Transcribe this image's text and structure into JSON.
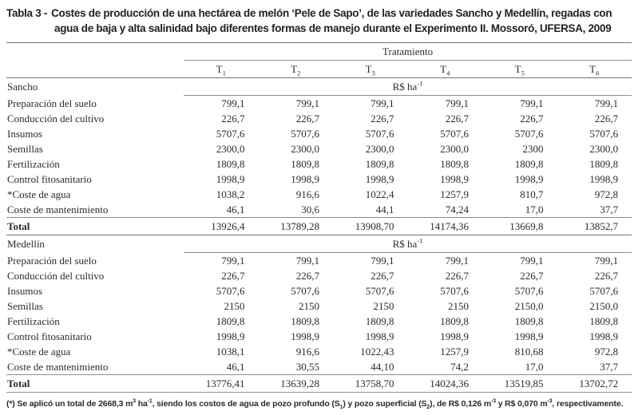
{
  "title": {
    "label": "Tabla 3 -",
    "text": "Costes de producción de una hectárea de melón ‘Pele de Sapo’, de las variedades Sancho y Medellín, regadas con agua de baja y alta salinidad bajo diferentes formas de manejo durante el Experimento II. Mossoró, UFERSA, 2009"
  },
  "table": {
    "group_header": "Tratamiento",
    "columns": [
      {
        "t": "T",
        "sub": "1"
      },
      {
        "t": "T",
        "sub": "2"
      },
      {
        "t": "T",
        "sub": "3"
      },
      {
        "t": "T",
        "sub": "4"
      },
      {
        "t": "T",
        "sub": "5"
      },
      {
        "t": "T",
        "sub": "6"
      }
    ],
    "unit_segments": [
      {
        "t": "R$ ha"
      },
      {
        "sup": "-1"
      }
    ],
    "total_label": "Total",
    "sections": [
      {
        "name": "Sancho",
        "rows": [
          {
            "label": "Preparación del suelo",
            "values": [
              "799,1",
              "799,1",
              "799,1",
              "799,1",
              "799,1",
              "799,1"
            ]
          },
          {
            "label": "Conducción del cultivo",
            "values": [
              "226,7",
              "226,7",
              "226,7",
              "226,7",
              "226,7",
              "226,7"
            ]
          },
          {
            "label": "Insumos",
            "values": [
              "5707,6",
              "5707,6",
              "5707,6",
              "5707,6",
              "5707,6",
              "5707,6"
            ]
          },
          {
            "label": "Semillas",
            "values": [
              "2300,0",
              "2300,0",
              "2300,0",
              "2300,0",
              "2300",
              "2300,0"
            ]
          },
          {
            "label": "Fertilización",
            "values": [
              "1809,8",
              "1809,8",
              "1809,8",
              "1809,8",
              "1809,8",
              "1809,8"
            ]
          },
          {
            "label": "Control fitosanitario",
            "values": [
              "1998,9",
              "1998,9",
              "1998,9",
              "1998,9",
              "1998,9",
              "1998,9"
            ]
          },
          {
            "label": "*Coste de agua",
            "values": [
              "1038,2",
              "916,6",
              "1022,4",
              "1257,9",
              "810,7",
              "972,8"
            ]
          },
          {
            "label": "Coste de mantenimiento",
            "values": [
              "46,1",
              "30,6",
              "44,1",
              "74,24",
              "17,0",
              "37,7"
            ]
          }
        ],
        "total": [
          "13926,4",
          "13789,28",
          "13908,70",
          "14174,36",
          "13669,8",
          "13852,7"
        ]
      },
      {
        "name": "Medellín",
        "rows": [
          {
            "label": "Preparación del suelo",
            "values": [
              "799,1",
              "799,1",
              "799,1",
              "799,1",
              "799,1",
              "799,1"
            ]
          },
          {
            "label": "Conducción del cultivo",
            "values": [
              "226,7",
              "226,7",
              "226,7",
              "226,7",
              "226,7",
              "226,7"
            ]
          },
          {
            "label": "Insumos",
            "values": [
              "5707,6",
              "5707,6",
              "5707,6",
              "5707,6",
              "5707,6",
              "5707,6"
            ]
          },
          {
            "label": "Semillas",
            "values": [
              "2150",
              "2150",
              "2150",
              "2150",
              "2150,0",
              "2150,0"
            ]
          },
          {
            "label": "Fertilización",
            "values": [
              "1809,8",
              "1809,8",
              "1809,8",
              "1809,8",
              "1809,8",
              "1809,8"
            ]
          },
          {
            "label": "Control fitosanitario",
            "values": [
              "1998,9",
              "1998,9",
              "1998,9",
              "1998,9",
              "1998,9",
              "1998,9"
            ]
          },
          {
            "label": "*Coste de agua",
            "values": [
              "1038,1",
              "916,6",
              "1022,43",
              "1257,9",
              "810,68",
              "972,8"
            ]
          },
          {
            "label": "Coste de mantenimiento",
            "values": [
              "46,1",
              "30,55",
              "44,10",
              "74,2",
              "17,0",
              "37,7"
            ]
          }
        ],
        "total": [
          "13776,41",
          "13639,28",
          "13758,70",
          "14024,36",
          "13519,85",
          "13702,72"
        ]
      }
    ]
  },
  "footnote_segments": [
    {
      "t": "(*) Se aplicó un total de 2668,3 m"
    },
    {
      "sup": "3"
    },
    {
      "t": " ha"
    },
    {
      "sup": "-1"
    },
    {
      "t": ", siendo los costos de agua de pozo profundo (S"
    },
    {
      "sub": "1"
    },
    {
      "t": ") y pozo superficial (S"
    },
    {
      "sub": "2"
    },
    {
      "t": "), de R$ 0,126 m"
    },
    {
      "sup": "-3"
    },
    {
      "t": " y R$ 0,070 m"
    },
    {
      "sup": "-3"
    },
    {
      "t": ", respectivamente."
    }
  ]
}
